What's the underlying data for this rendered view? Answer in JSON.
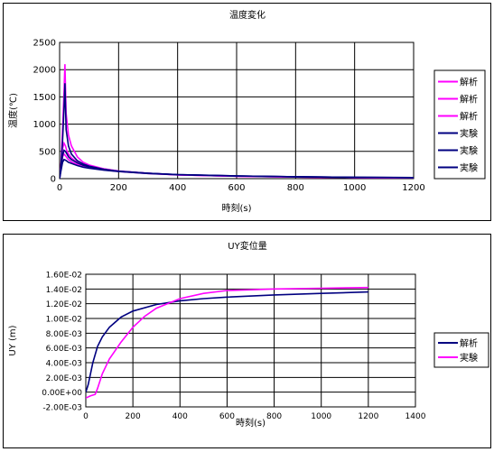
{
  "charts": [
    {
      "title": "温度変化",
      "xlabel": "時刻(s)",
      "ylabel": "温度(℃)",
      "xlim": [
        0,
        1200
      ],
      "ylim": [
        0,
        2500
      ],
      "xticks": [
        "0",
        "200",
        "400",
        "600",
        "800",
        "1000",
        "1200"
      ],
      "yticks": [
        "0",
        "500",
        "1000",
        "1500",
        "2000",
        "2500"
      ],
      "legend": [
        "解析",
        "解析",
        "解析",
        "実験",
        "実験",
        "実験"
      ]
    },
    {
      "title": "UY変位量",
      "xlabel": "時刻(s)",
      "ylabel": "UY (m)",
      "xlim": [
        0,
        1400
      ],
      "ylim": [
        -0.002,
        0.016
      ],
      "xticks": [
        "0",
        "200",
        "400",
        "600",
        "800",
        "1000",
        "1200",
        "1400"
      ],
      "yticks": [
        "-2.00E-03",
        "0.00E+00",
        "2.00E-03",
        "4.00E-03",
        "6.00E-03",
        "8.00E-03",
        "1.00E-02",
        "1.20E-02",
        "1.40E-02",
        "1.60E-02"
      ],
      "legend": [
        "解析",
        "実験"
      ]
    }
  ],
  "chart_data": [
    {
      "type": "line",
      "title": "温度変化",
      "xlabel": "時刻(s)",
      "ylabel": "温度(℃)",
      "xlim": [
        0,
        1200
      ],
      "ylim": [
        0,
        2500
      ],
      "grid": true,
      "legend_position": "right",
      "series": [
        {
          "name": "解析",
          "color": "#ff00ff",
          "x": [
            0,
            5,
            10,
            15,
            18,
            22,
            30,
            40,
            60,
            80,
            100,
            150,
            200,
            300,
            400,
            600,
            800,
            1000,
            1200
          ],
          "y": [
            0,
            300,
            900,
            1600,
            2100,
            1200,
            800,
            600,
            400,
            300,
            250,
            180,
            140,
            100,
            70,
            45,
            30,
            20,
            15
          ]
        },
        {
          "name": "解析",
          "color": "#ff00ff",
          "x": [
            0,
            5,
            10,
            15,
            20,
            25,
            30,
            40,
            60,
            80,
            100,
            150,
            200,
            300,
            400,
            600,
            800,
            1000,
            1200
          ],
          "y": [
            0,
            250,
            550,
            650,
            600,
            500,
            450,
            380,
            300,
            250,
            220,
            170,
            135,
            100,
            70,
            45,
            30,
            20,
            15
          ]
        },
        {
          "name": "解析",
          "color": "#ff00ff",
          "x": [
            0,
            5,
            10,
            15,
            20,
            25,
            30,
            40,
            60,
            80,
            100,
            150,
            200,
            300,
            400,
            600,
            800,
            1000,
            1200
          ],
          "y": [
            0,
            200,
            400,
            450,
            420,
            380,
            350,
            310,
            260,
            220,
            200,
            160,
            130,
            95,
            70,
            45,
            30,
            20,
            15
          ]
        },
        {
          "name": "実験",
          "color": "#000080",
          "x": [
            0,
            5,
            10,
            15,
            18,
            22,
            30,
            40,
            60,
            80,
            100,
            150,
            200,
            300,
            400,
            600,
            800,
            1000,
            1200
          ],
          "y": [
            0,
            250,
            700,
            1300,
            1750,
            900,
            600,
            450,
            330,
            270,
            230,
            170,
            135,
            100,
            75,
            50,
            35,
            25,
            20
          ]
        },
        {
          "name": "実験",
          "color": "#000080",
          "x": [
            0,
            5,
            10,
            15,
            20,
            25,
            30,
            40,
            60,
            80,
            100,
            150,
            200,
            300,
            400,
            600,
            800,
            1000,
            1200
          ],
          "y": [
            0,
            200,
            420,
            520,
            500,
            450,
            400,
            350,
            290,
            245,
            215,
            170,
            135,
            100,
            75,
            50,
            35,
            25,
            20
          ]
        },
        {
          "name": "実験",
          "color": "#000080",
          "x": [
            0,
            5,
            10,
            15,
            20,
            25,
            30,
            40,
            60,
            80,
            100,
            150,
            200,
            300,
            400,
            600,
            800,
            1000,
            1200
          ],
          "y": [
            0,
            150,
            300,
            350,
            340,
            320,
            300,
            280,
            240,
            210,
            190,
            155,
            130,
            95,
            72,
            48,
            34,
            24,
            18
          ]
        }
      ]
    },
    {
      "type": "line",
      "title": "UY変位量",
      "xlabel": "時刻(s)",
      "ylabel": "UY (m)",
      "xlim": [
        0,
        1400
      ],
      "ylim": [
        -0.002,
        0.016
      ],
      "grid": true,
      "legend_position": "right",
      "series": [
        {
          "name": "解析",
          "color": "#000080",
          "x": [
            0,
            10,
            20,
            30,
            50,
            70,
            100,
            150,
            200,
            300,
            400,
            500,
            600,
            800,
            1000,
            1200
          ],
          "y": [
            0.0,
            0.001,
            0.0025,
            0.004,
            0.0062,
            0.0075,
            0.0088,
            0.0102,
            0.011,
            0.0119,
            0.0124,
            0.0127,
            0.0129,
            0.0132,
            0.0134,
            0.0136
          ]
        },
        {
          "name": "実験",
          "color": "#ff00ff",
          "x": [
            0,
            20,
            40,
            50,
            70,
            100,
            150,
            200,
            250,
            300,
            400,
            500,
            600,
            700,
            800,
            1000,
            1200
          ],
          "y": [
            -0.0008,
            -0.0005,
            -0.0003,
            0.0005,
            0.0025,
            0.0045,
            0.0068,
            0.0088,
            0.0103,
            0.0114,
            0.0127,
            0.0134,
            0.0138,
            0.0139,
            0.014,
            0.0141,
            0.0142
          ]
        }
      ]
    }
  ]
}
